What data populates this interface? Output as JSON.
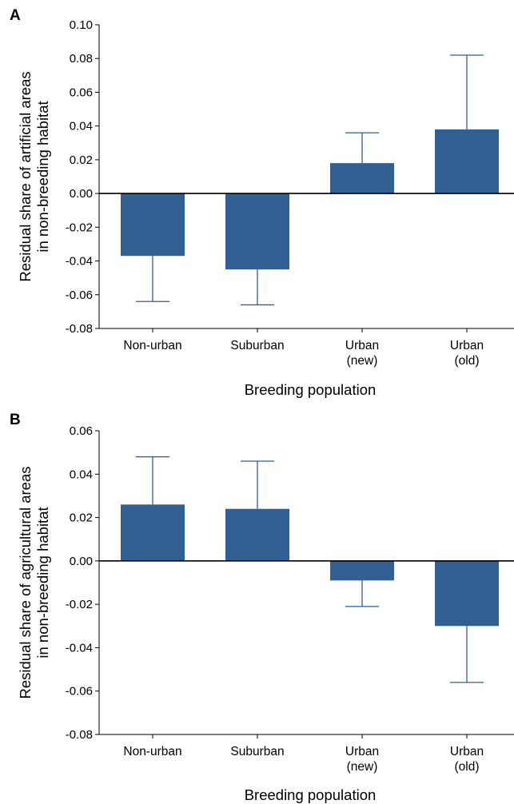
{
  "colors": {
    "bar": "#325f91",
    "axis": "#000000",
    "error_bar": "#325f91"
  },
  "chart_data": [
    {
      "panel": "A",
      "type": "bar",
      "categories": [
        [
          "Non-urban"
        ],
        [
          "Suburban"
        ],
        [
          "Urban",
          "(new)"
        ],
        [
          "Urban",
          "(old)"
        ]
      ],
      "values": [
        -0.037,
        -0.045,
        0.018,
        0.038
      ],
      "error_bars": [
        -0.064,
        -0.066,
        0.036,
        0.082
      ],
      "ylim": [
        -0.08,
        0.1
      ],
      "yticks": [
        "0.10",
        "0.08",
        "0.06",
        "0.04",
        "0.02",
        "0.00",
        "-0.02",
        "-0.04",
        "-0.06",
        "-0.08"
      ],
      "ylabel": [
        "Residual share of artificial areas",
        "in non-breeding habitat"
      ],
      "xlabel": "Breeding population",
      "grid": false
    },
    {
      "panel": "B",
      "type": "bar",
      "categories": [
        [
          "Non-urban"
        ],
        [
          "Suburban"
        ],
        [
          "Urban",
          "(new)"
        ],
        [
          "Urban",
          "(old)"
        ]
      ],
      "values": [
        0.026,
        0.024,
        -0.009,
        -0.03
      ],
      "error_bars": [
        0.048,
        0.046,
        -0.021,
        -0.056
      ],
      "ylim": [
        -0.08,
        0.06
      ],
      "yticks": [
        "0.06",
        "0.04",
        "0.02",
        "0.00",
        "-0.02",
        "-0.04",
        "-0.06",
        "-0.08"
      ],
      "ylabel": [
        "Residual share of agricultural areas",
        "in non-breeding habitat"
      ],
      "xlabel": "Breeding population",
      "grid": false
    }
  ]
}
